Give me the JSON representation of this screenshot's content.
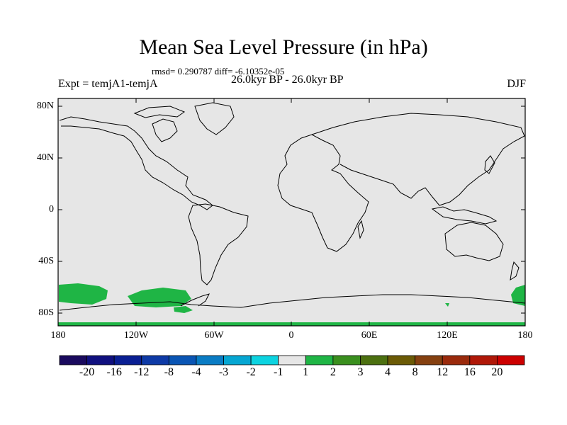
{
  "title": "Mean Sea Level Pressure (in hPa)",
  "stats": "rmsd= 0.290787  diff= -6.10352e-05",
  "period": "26.0kyr BP - 26.0kyr BP",
  "experiment": "Expt = temjA1-temjA",
  "season": "DJF",
  "map": {
    "ocean_color": "#e6e6e6",
    "latitude_labels": [
      "80N",
      "40N",
      "0",
      "40S",
      "80S"
    ],
    "longitude_labels": [
      "180",
      "120W",
      "60W",
      "0",
      "60E",
      "120E",
      "180"
    ],
    "anomaly_color": "#1fb545"
  },
  "colorbar": {
    "labels": [
      "-20",
      "-16",
      "-12",
      "-8",
      "-4",
      "-3",
      "-2",
      "-1",
      "1",
      "2",
      "3",
      "4",
      "8",
      "12",
      "16",
      "20"
    ],
    "colors": [
      "#1a0a5e",
      "#10107f",
      "#0a1f93",
      "#0e3aa6",
      "#0a55b4",
      "#0a7cc4",
      "#06a6d2",
      "#0cd3e0",
      "#e6e6e6",
      "#1fb545",
      "#3a8f1e",
      "#4c7010",
      "#6b5a06",
      "#854010",
      "#9a2a0c",
      "#b01808",
      "#cc0000"
    ]
  }
}
